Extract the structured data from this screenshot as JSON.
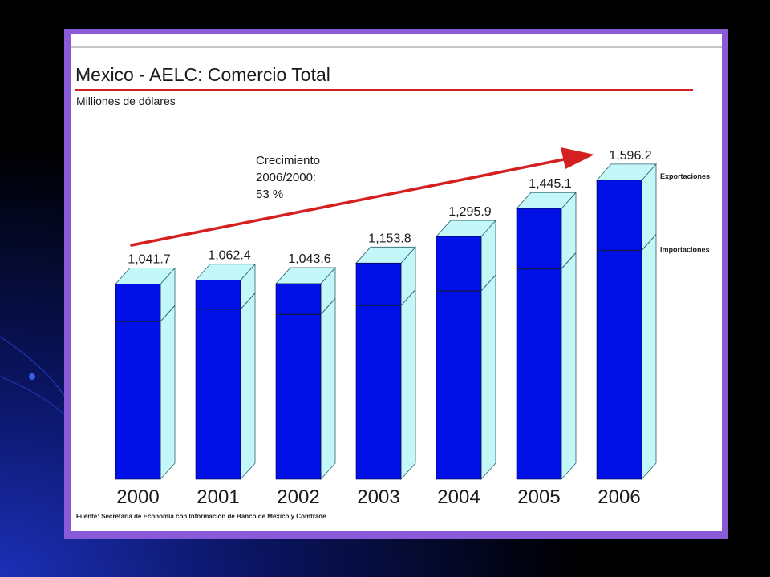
{
  "slide": {
    "title": "Mexico - AELC: Comercio Total",
    "subtitle": "Milliones de dólares",
    "growth_note": [
      "Crecimiento",
      "2006/2000:",
      "53 %"
    ],
    "source": "Fuente: Secretaría de Economía con Información de Banco de México y Comtrade"
  },
  "chart_data": {
    "type": "bar",
    "stacked": true,
    "title": "Mexico - AELC: Comercio Total",
    "ylabel": "Milliones de dólares",
    "categories": [
      "2000",
      "2001",
      "2002",
      "2003",
      "2004",
      "2005",
      "2006"
    ],
    "totals": [
      1041.7,
      1062.4,
      1043.6,
      1153.8,
      1295.9,
      1445.1,
      1596.2
    ],
    "total_labels": [
      "1,041.7",
      "1,062.4",
      "1,043.6",
      "1,153.8",
      "1,295.9",
      "1,445.1",
      "1,596.2"
    ],
    "series": [
      {
        "name": "Importaciones",
        "values": [
          842,
          908,
          880,
          927,
          1005,
          1123,
          1221
        ]
      },
      {
        "name": "Exportaciones",
        "values": [
          199.7,
          154.4,
          163.6,
          226.8,
          290.9,
          322.1,
          375.2
        ]
      }
    ],
    "ylim": [
      0,
      1600
    ],
    "grid": false,
    "legend": "right",
    "annotation": "Crecimiento 2006/2000: 53 %",
    "colors": {
      "bar_front": "#0010e6",
      "bar_side": "#c4f8f8",
      "bar_top": "#c4f8f8",
      "outline": "#2a6070",
      "arrow": "#d42020",
      "panel_border": "#8a5bd8"
    }
  }
}
